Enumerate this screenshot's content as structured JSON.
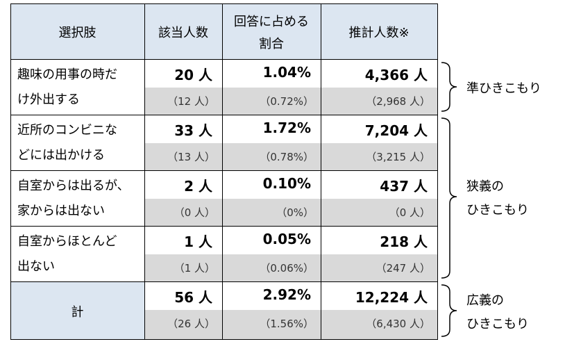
{
  "table": {
    "header": [
      [
        "選択肢"
      ],
      [
        "該当人数"
      ],
      [
        "回答に占める",
        "割合"
      ],
      [
        "推計人数※"
      ]
    ],
    "rows": [
      {
        "label": [
          "趣味の用事の時だ",
          "け外出する"
        ],
        "cells": [
          [
            "20 人",
            "（12 人）"
          ],
          [
            "1.04%",
            "（0.72%）"
          ],
          [
            "4,366 人",
            "（2,968 人）"
          ]
        ]
      },
      {
        "label": [
          "近所のコンビニな",
          "どには出かける"
        ],
        "cells": [
          [
            "33 人",
            "（13 人）"
          ],
          [
            "1.72%",
            "（0.78%）"
          ],
          [
            "7,204 人",
            "（3,215 人）"
          ]
        ]
      },
      {
        "label": [
          "自室からは出るが、",
          "家からは出ない"
        ],
        "cells": [
          [
            "2 人",
            "（0 人）"
          ],
          [
            "0.10%",
            "（0%）"
          ],
          [
            "437 人",
            "（0 人）"
          ]
        ]
      },
      {
        "label": [
          "自室からほとんど",
          "出ない"
        ],
        "cells": [
          [
            "1 人",
            "（1 人）"
          ],
          [
            "0.05%",
            "（0.06%）"
          ],
          [
            "218 人",
            "（247 人）"
          ]
        ]
      },
      {
        "label": [
          "計"
        ],
        "cells": [
          [
            "56 人",
            "（26 人）"
          ],
          [
            "2.92%",
            "（1.56%）"
          ],
          [
            "12,224 人",
            "（6,430 人）"
          ]
        ]
      }
    ]
  },
  "annotations": [
    {
      "lines": [
        "準ひきこもり"
      ]
    },
    {
      "lines": [
        "狭義の",
        "ひきこもり"
      ]
    },
    {
      "lines": [
        "広義の",
        "ひきこもり"
      ]
    }
  ]
}
